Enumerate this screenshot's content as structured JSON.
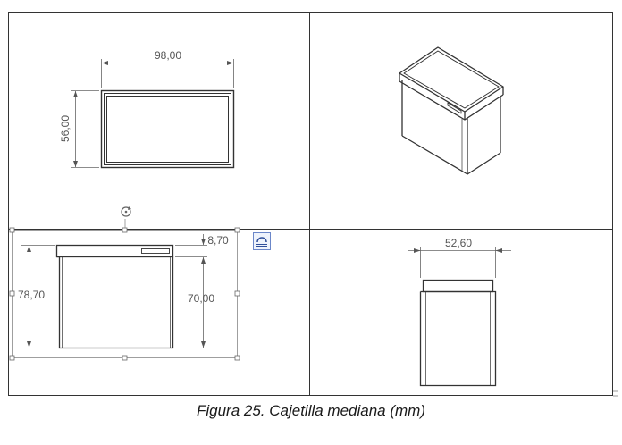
{
  "dimensions": {
    "top_width": "98,00",
    "top_depth": "56,00",
    "front_lid": "8,70",
    "front_total_height": "78,70",
    "front_body_height": "70,00",
    "side_width": "52,60"
  },
  "caption": "Figura 25. Cajetilla mediana (mm)",
  "icons": {
    "rotate_handle": "rotate-handle-icon",
    "arc_button": "arc-tool-icon"
  }
}
